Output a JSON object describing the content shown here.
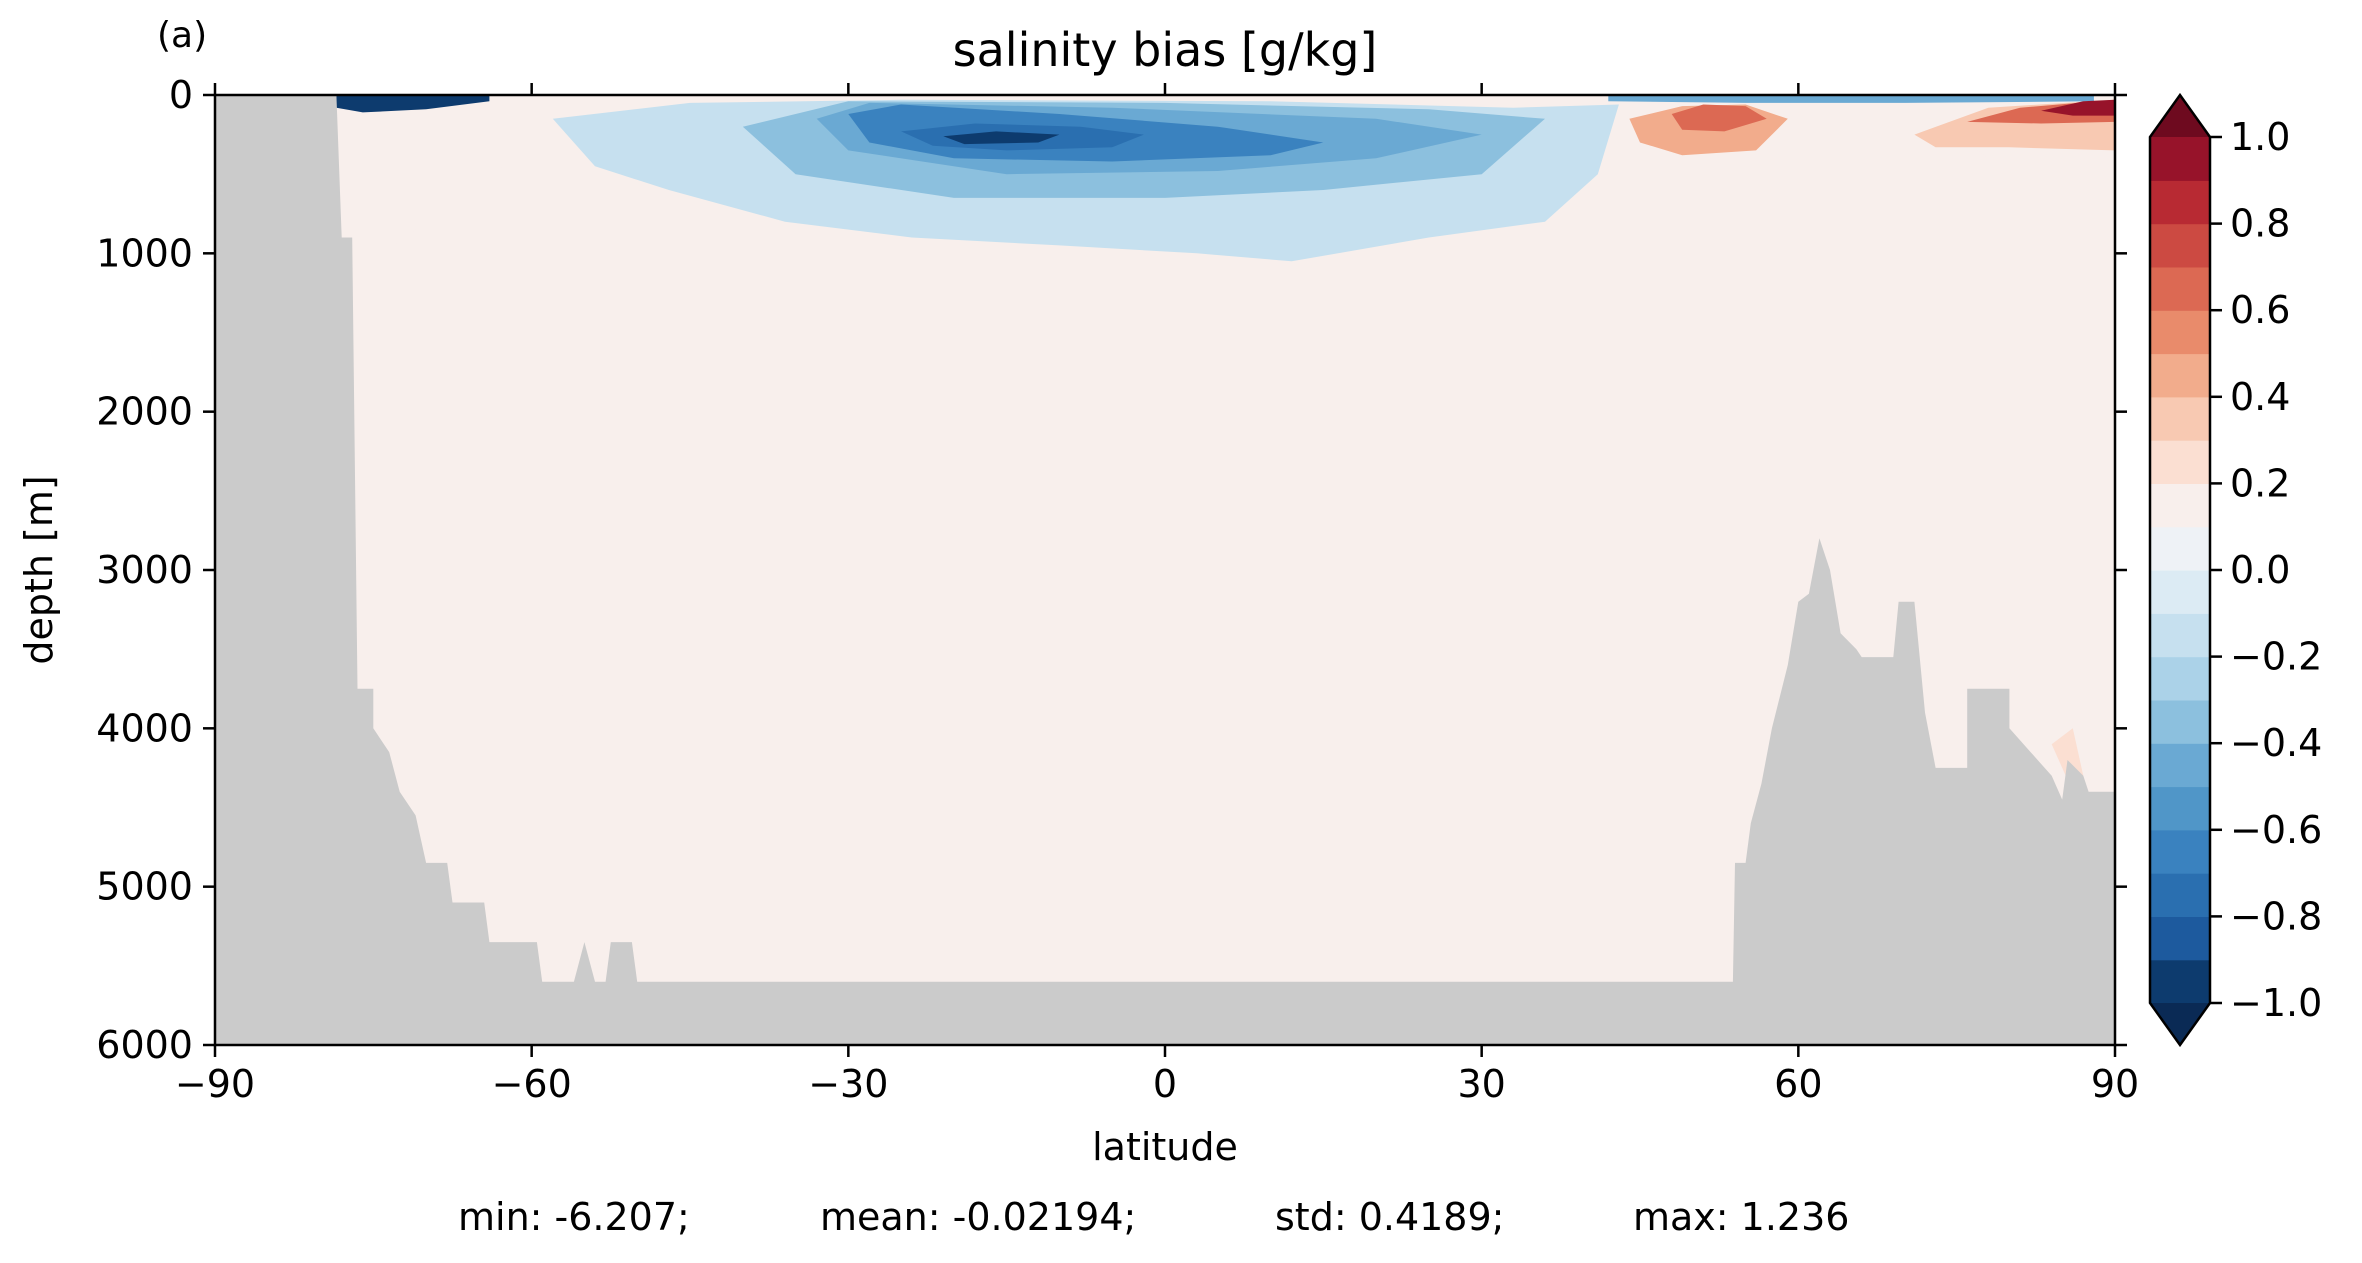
{
  "panel_label": "(a)",
  "chart_data": {
    "type": "heatmap",
    "title": "salinity bias [g/kg]",
    "xlabel": "latitude",
    "ylabel": "depth [m]",
    "xlim": [
      -90,
      90
    ],
    "ylim": [
      6000,
      0
    ],
    "y_inverted": true,
    "x_ticks": [
      -90,
      -60,
      -30,
      0,
      30,
      60,
      90
    ],
    "x_tick_labels": [
      "−90",
      "−60",
      "−30",
      "0",
      "30",
      "60",
      "90"
    ],
    "y_ticks": [
      0,
      1000,
      2000,
      3000,
      4000,
      5000,
      6000
    ],
    "y_tick_labels": [
      "0",
      "1000",
      "2000",
      "3000",
      "4000",
      "5000",
      "6000"
    ],
    "grid": false,
    "colorbar": {
      "levels": [
        -1.0,
        -0.9,
        -0.8,
        -0.7,
        -0.6,
        -0.5,
        -0.4,
        -0.3,
        -0.2,
        -0.1,
        0.0,
        0.1,
        0.2,
        0.3,
        0.4,
        0.5,
        0.6,
        0.7,
        0.8,
        0.9,
        1.0
      ],
      "colors": [
        "#0d3b6e",
        "#1d5a9e",
        "#2a6fb0",
        "#3a82bf",
        "#5096c8",
        "#6aa9d3",
        "#8cc0de",
        "#abd2e8",
        "#c6e0ef",
        "#dcebf4",
        "#eef2f6",
        "#f8efec",
        "#fbdfd2",
        "#f8c9b2",
        "#f2ac8c",
        "#e98b6b",
        "#dc6953",
        "#cc4a42",
        "#b82a33",
        "#97132a"
      ],
      "extend": "both",
      "under_color": "#0a2a55",
      "over_color": "#6e0a1f",
      "ticks": [
        -1.0,
        -0.8,
        -0.6,
        -0.4,
        -0.2,
        0.0,
        0.2,
        0.4,
        0.6,
        0.8,
        1.0
      ],
      "tick_labels": [
        "−1.0",
        "−0.8",
        "−0.6",
        "−0.4",
        "−0.2",
        "0.0",
        "0.2",
        "0.4",
        "0.6",
        "0.8",
        "1.0"
      ]
    },
    "land_color": "#cbcbcb",
    "bathymetry_profile": [
      {
        "lat": -90,
        "depth": 0
      },
      {
        "lat": -78.5,
        "depth": 0
      },
      {
        "lat": -78,
        "depth": 900
      },
      {
        "lat": -77,
        "depth": 900
      },
      {
        "lat": -76.5,
        "depth": 3750
      },
      {
        "lat": -75,
        "depth": 3750
      },
      {
        "lat": -75,
        "depth": 4000
      },
      {
        "lat": -73.5,
        "depth": 4150
      },
      {
        "lat": -72.5,
        "depth": 4400
      },
      {
        "lat": -71,
        "depth": 4550
      },
      {
        "lat": -70,
        "depth": 4850
      },
      {
        "lat": -68,
        "depth": 4850
      },
      {
        "lat": -67.5,
        "depth": 5100
      },
      {
        "lat": -64.5,
        "depth": 5100
      },
      {
        "lat": -64,
        "depth": 5350
      },
      {
        "lat": -59.5,
        "depth": 5350
      },
      {
        "lat": -59,
        "depth": 5600
      },
      {
        "lat": -56,
        "depth": 5600
      },
      {
        "lat": -55,
        "depth": 5350
      },
      {
        "lat": -54,
        "depth": 5600
      },
      {
        "lat": -53,
        "depth": 5600
      },
      {
        "lat": -52.5,
        "depth": 5350
      },
      {
        "lat": -50.5,
        "depth": 5350
      },
      {
        "lat": -50,
        "depth": 5600
      },
      {
        "lat": 53.8,
        "depth": 5600
      },
      {
        "lat": 54,
        "depth": 4850
      },
      {
        "lat": 55,
        "depth": 4850
      },
      {
        "lat": 55.5,
        "depth": 4600
      },
      {
        "lat": 56.5,
        "depth": 4350
      },
      {
        "lat": 57.5,
        "depth": 4000
      },
      {
        "lat": 59,
        "depth": 3600
      },
      {
        "lat": 60,
        "depth": 3200
      },
      {
        "lat": 61,
        "depth": 3150
      },
      {
        "lat": 62,
        "depth": 2800
      },
      {
        "lat": 63,
        "depth": 3000
      },
      {
        "lat": 64,
        "depth": 3400
      },
      {
        "lat": 65.5,
        "depth": 3500
      },
      {
        "lat": 66,
        "depth": 3550
      },
      {
        "lat": 69,
        "depth": 3550
      },
      {
        "lat": 69.5,
        "depth": 3200
      },
      {
        "lat": 71,
        "depth": 3200
      },
      {
        "lat": 72,
        "depth": 3900
      },
      {
        "lat": 73,
        "depth": 4250
      },
      {
        "lat": 76,
        "depth": 4250
      },
      {
        "lat": 76,
        "depth": 3750
      },
      {
        "lat": 80,
        "depth": 3750
      },
      {
        "lat": 80,
        "depth": 4000
      },
      {
        "lat": 82,
        "depth": 4150
      },
      {
        "lat": 84,
        "depth": 4300
      },
      {
        "lat": 85,
        "depth": 4450
      },
      {
        "lat": 85.5,
        "depth": 4200
      },
      {
        "lat": 87,
        "depth": 4300
      },
      {
        "lat": 87.5,
        "depth": 4400
      },
      {
        "lat": 90,
        "depth": 4400
      },
      {
        "lat": 90,
        "depth": 6000
      },
      {
        "lat": -90,
        "depth": 6000
      }
    ],
    "bias_regions": [
      {
        "value": 0.15,
        "points": [
          [
            -65,
            500
          ],
          [
            -60,
            400
          ],
          [
            -45,
            500
          ],
          [
            -40,
            900
          ],
          [
            -36,
            1200
          ],
          [
            -33,
            2000
          ],
          [
            -35,
            2700
          ],
          [
            -32,
            3300
          ],
          [
            -28,
            3700
          ],
          [
            -25,
            4000
          ],
          [
            -23,
            4400
          ],
          [
            -16,
            4600
          ],
          [
            -14,
            5000
          ],
          [
            -12,
            5300
          ],
          [
            -10,
            5600
          ],
          [
            -41,
            5600
          ],
          [
            -44,
            5300
          ],
          [
            -48,
            4900
          ],
          [
            -53,
            4300
          ],
          [
            -57,
            3800
          ],
          [
            -61,
            3300
          ],
          [
            -62,
            2600
          ],
          [
            -63,
            1800
          ],
          [
            -65,
            1200
          ]
        ]
      },
      {
        "value": 0.15,
        "points": [
          [
            -78,
            200
          ],
          [
            -73,
            150
          ],
          [
            -69,
            300
          ],
          [
            -70,
            800
          ],
          [
            -74,
            1000
          ],
          [
            -76.5,
            1000
          ],
          [
            -77,
            700
          ]
        ]
      },
      {
        "value": 0.15,
        "points": [
          [
            6,
            4850
          ],
          [
            9,
            4650
          ],
          [
            12,
            4700
          ],
          [
            14,
            5000
          ],
          [
            13.5,
            5400
          ],
          [
            11,
            5600
          ],
          [
            7,
            5600
          ],
          [
            6.5,
            5200
          ]
        ]
      },
      {
        "value": 0.15,
        "points": [
          [
            16,
            4800
          ],
          [
            20,
            4650
          ],
          [
            21,
            5000
          ],
          [
            21.5,
            5600
          ],
          [
            19,
            5600
          ],
          [
            17,
            5200
          ]
        ]
      },
      {
        "value": 0.15,
        "points": [
          [
            24,
            4700
          ],
          [
            27,
            4150
          ],
          [
            33,
            4000
          ],
          [
            35,
            4400
          ],
          [
            37,
            4800
          ],
          [
            39,
            5300
          ],
          [
            40,
            5600
          ],
          [
            23,
            5600
          ],
          [
            22,
            5300
          ]
        ]
      },
      {
        "value": 0.15,
        "points": [
          [
            21,
            600
          ],
          [
            27,
            500
          ],
          [
            34,
            500
          ],
          [
            39,
            700
          ],
          [
            37,
            1000
          ],
          [
            32,
            1050
          ],
          [
            26,
            1000
          ],
          [
            21,
            900
          ]
        ]
      },
      {
        "value": 0.15,
        "points": [
          [
            42,
            300
          ],
          [
            49,
            150
          ],
          [
            56,
            200
          ],
          [
            60,
            300
          ],
          [
            60,
            700
          ],
          [
            58,
            1100
          ],
          [
            58,
            1700
          ],
          [
            53,
            2000
          ],
          [
            48,
            2000
          ],
          [
            44,
            1800
          ],
          [
            43,
            1100
          ],
          [
            42,
            700
          ]
        ]
      },
      {
        "value": 0.15,
        "points": [
          [
            66,
            150
          ],
          [
            72,
            100
          ],
          [
            78,
            400
          ],
          [
            86,
            700
          ],
          [
            90,
            800
          ],
          [
            90,
            4400
          ],
          [
            87.5,
            4400
          ],
          [
            85,
            4450
          ],
          [
            82,
            4150
          ],
          [
            80,
            3750
          ],
          [
            76,
            3750
          ],
          [
            73,
            4250
          ],
          [
            72,
            3900
          ],
          [
            71,
            3200
          ],
          [
            69.5,
            3200
          ],
          [
            69,
            3550
          ],
          [
            66,
            3550
          ],
          [
            64,
            3400
          ],
          [
            64,
            2600
          ],
          [
            65,
            1500
          ],
          [
            66,
            800
          ]
        ]
      },
      {
        "value": 0.15,
        "points": [
          [
            -1,
            5550
          ],
          [
            1,
            5450
          ],
          [
            2,
            5600
          ],
          [
            -1,
            5600
          ]
        ]
      },
      {
        "value": -0.15,
        "points": [
          [
            -58,
            150
          ],
          [
            -45,
            50
          ],
          [
            -25,
            30
          ],
          [
            10,
            40
          ],
          [
            33,
            80
          ],
          [
            43,
            60
          ],
          [
            41,
            500
          ],
          [
            36,
            800
          ],
          [
            25,
            900
          ],
          [
            12,
            1050
          ],
          [
            3,
            1000
          ],
          [
            -10,
            950
          ],
          [
            -24,
            900
          ],
          [
            -36,
            800
          ],
          [
            -47,
            600
          ],
          [
            -54,
            450
          ]
        ]
      },
      {
        "value": -0.3,
        "points": [
          [
            -40,
            200
          ],
          [
            -30,
            40
          ],
          [
            0,
            50
          ],
          [
            25,
            90
          ],
          [
            36,
            150
          ],
          [
            30,
            500
          ],
          [
            15,
            600
          ],
          [
            0,
            650
          ],
          [
            -20,
            650
          ],
          [
            -35,
            500
          ]
        ]
      },
      {
        "value": -0.45,
        "points": [
          [
            -33,
            150
          ],
          [
            -28,
            50
          ],
          [
            -5,
            80
          ],
          [
            20,
            150
          ],
          [
            30,
            250
          ],
          [
            20,
            400
          ],
          [
            5,
            480
          ],
          [
            -15,
            500
          ],
          [
            -30,
            350
          ]
        ]
      },
      {
        "value": -0.6,
        "points": [
          [
            -30,
            120
          ],
          [
            -25,
            60
          ],
          [
            -10,
            120
          ],
          [
            5,
            200
          ],
          [
            15,
            300
          ],
          [
            10,
            380
          ],
          [
            -5,
            420
          ],
          [
            -20,
            400
          ],
          [
            -28,
            300
          ]
        ]
      },
      {
        "value": -0.75,
        "points": [
          [
            -25,
            230
          ],
          [
            -18,
            180
          ],
          [
            -8,
            200
          ],
          [
            -2,
            250
          ],
          [
            -5,
            330
          ],
          [
            -15,
            350
          ],
          [
            -22,
            320
          ]
        ]
      },
      {
        "value": -0.9,
        "points": [
          [
            -21,
            260
          ],
          [
            -16,
            230
          ],
          [
            -10,
            250
          ],
          [
            -12,
            300
          ],
          [
            -19,
            310
          ]
        ]
      },
      {
        "value": -0.9,
        "points": [
          [
            -78.5,
            0
          ],
          [
            -64,
            0
          ],
          [
            -64,
            40
          ],
          [
            -70,
            90
          ],
          [
            -76,
            110
          ],
          [
            -78.5,
            80
          ]
        ]
      },
      {
        "value": -0.45,
        "points": [
          [
            42,
            0
          ],
          [
            88,
            0
          ],
          [
            88,
            40
          ],
          [
            70,
            50
          ],
          [
            55,
            50
          ],
          [
            42,
            40
          ]
        ]
      },
      {
        "value": 0.45,
        "points": [
          [
            44,
            150
          ],
          [
            49,
            70
          ],
          [
            55,
            60
          ],
          [
            59,
            150
          ],
          [
            56,
            350
          ],
          [
            49,
            380
          ],
          [
            45,
            300
          ]
        ]
      },
      {
        "value": 0.65,
        "points": [
          [
            48,
            120
          ],
          [
            51,
            60
          ],
          [
            55,
            70
          ],
          [
            57,
            150
          ],
          [
            53,
            230
          ],
          [
            49,
            220
          ]
        ]
      },
      {
        "value": 0.4,
        "points": [
          [
            71,
            250
          ],
          [
            78,
            80
          ],
          [
            90,
            30
          ],
          [
            90,
            350
          ],
          [
            80,
            330
          ],
          [
            73,
            330
          ]
        ]
      },
      {
        "value": 0.7,
        "points": [
          [
            76,
            170
          ],
          [
            81,
            80
          ],
          [
            90,
            30
          ],
          [
            90,
            170
          ],
          [
            83,
            180
          ]
        ]
      },
      {
        "value": 0.95,
        "points": [
          [
            83,
            100
          ],
          [
            87,
            40
          ],
          [
            90,
            30
          ],
          [
            90,
            130
          ],
          [
            86,
            130
          ]
        ]
      },
      {
        "value": 0.3,
        "points": [
          [
            84,
            4100
          ],
          [
            86,
            4000
          ],
          [
            87,
            4300
          ],
          [
            86,
            4400
          ]
        ]
      }
    ],
    "statistics": {
      "min": "min: -6.207;",
      "mean": "mean: -0.02194;",
      "std": "std: 0.4189;",
      "max": "max: 1.236"
    }
  }
}
